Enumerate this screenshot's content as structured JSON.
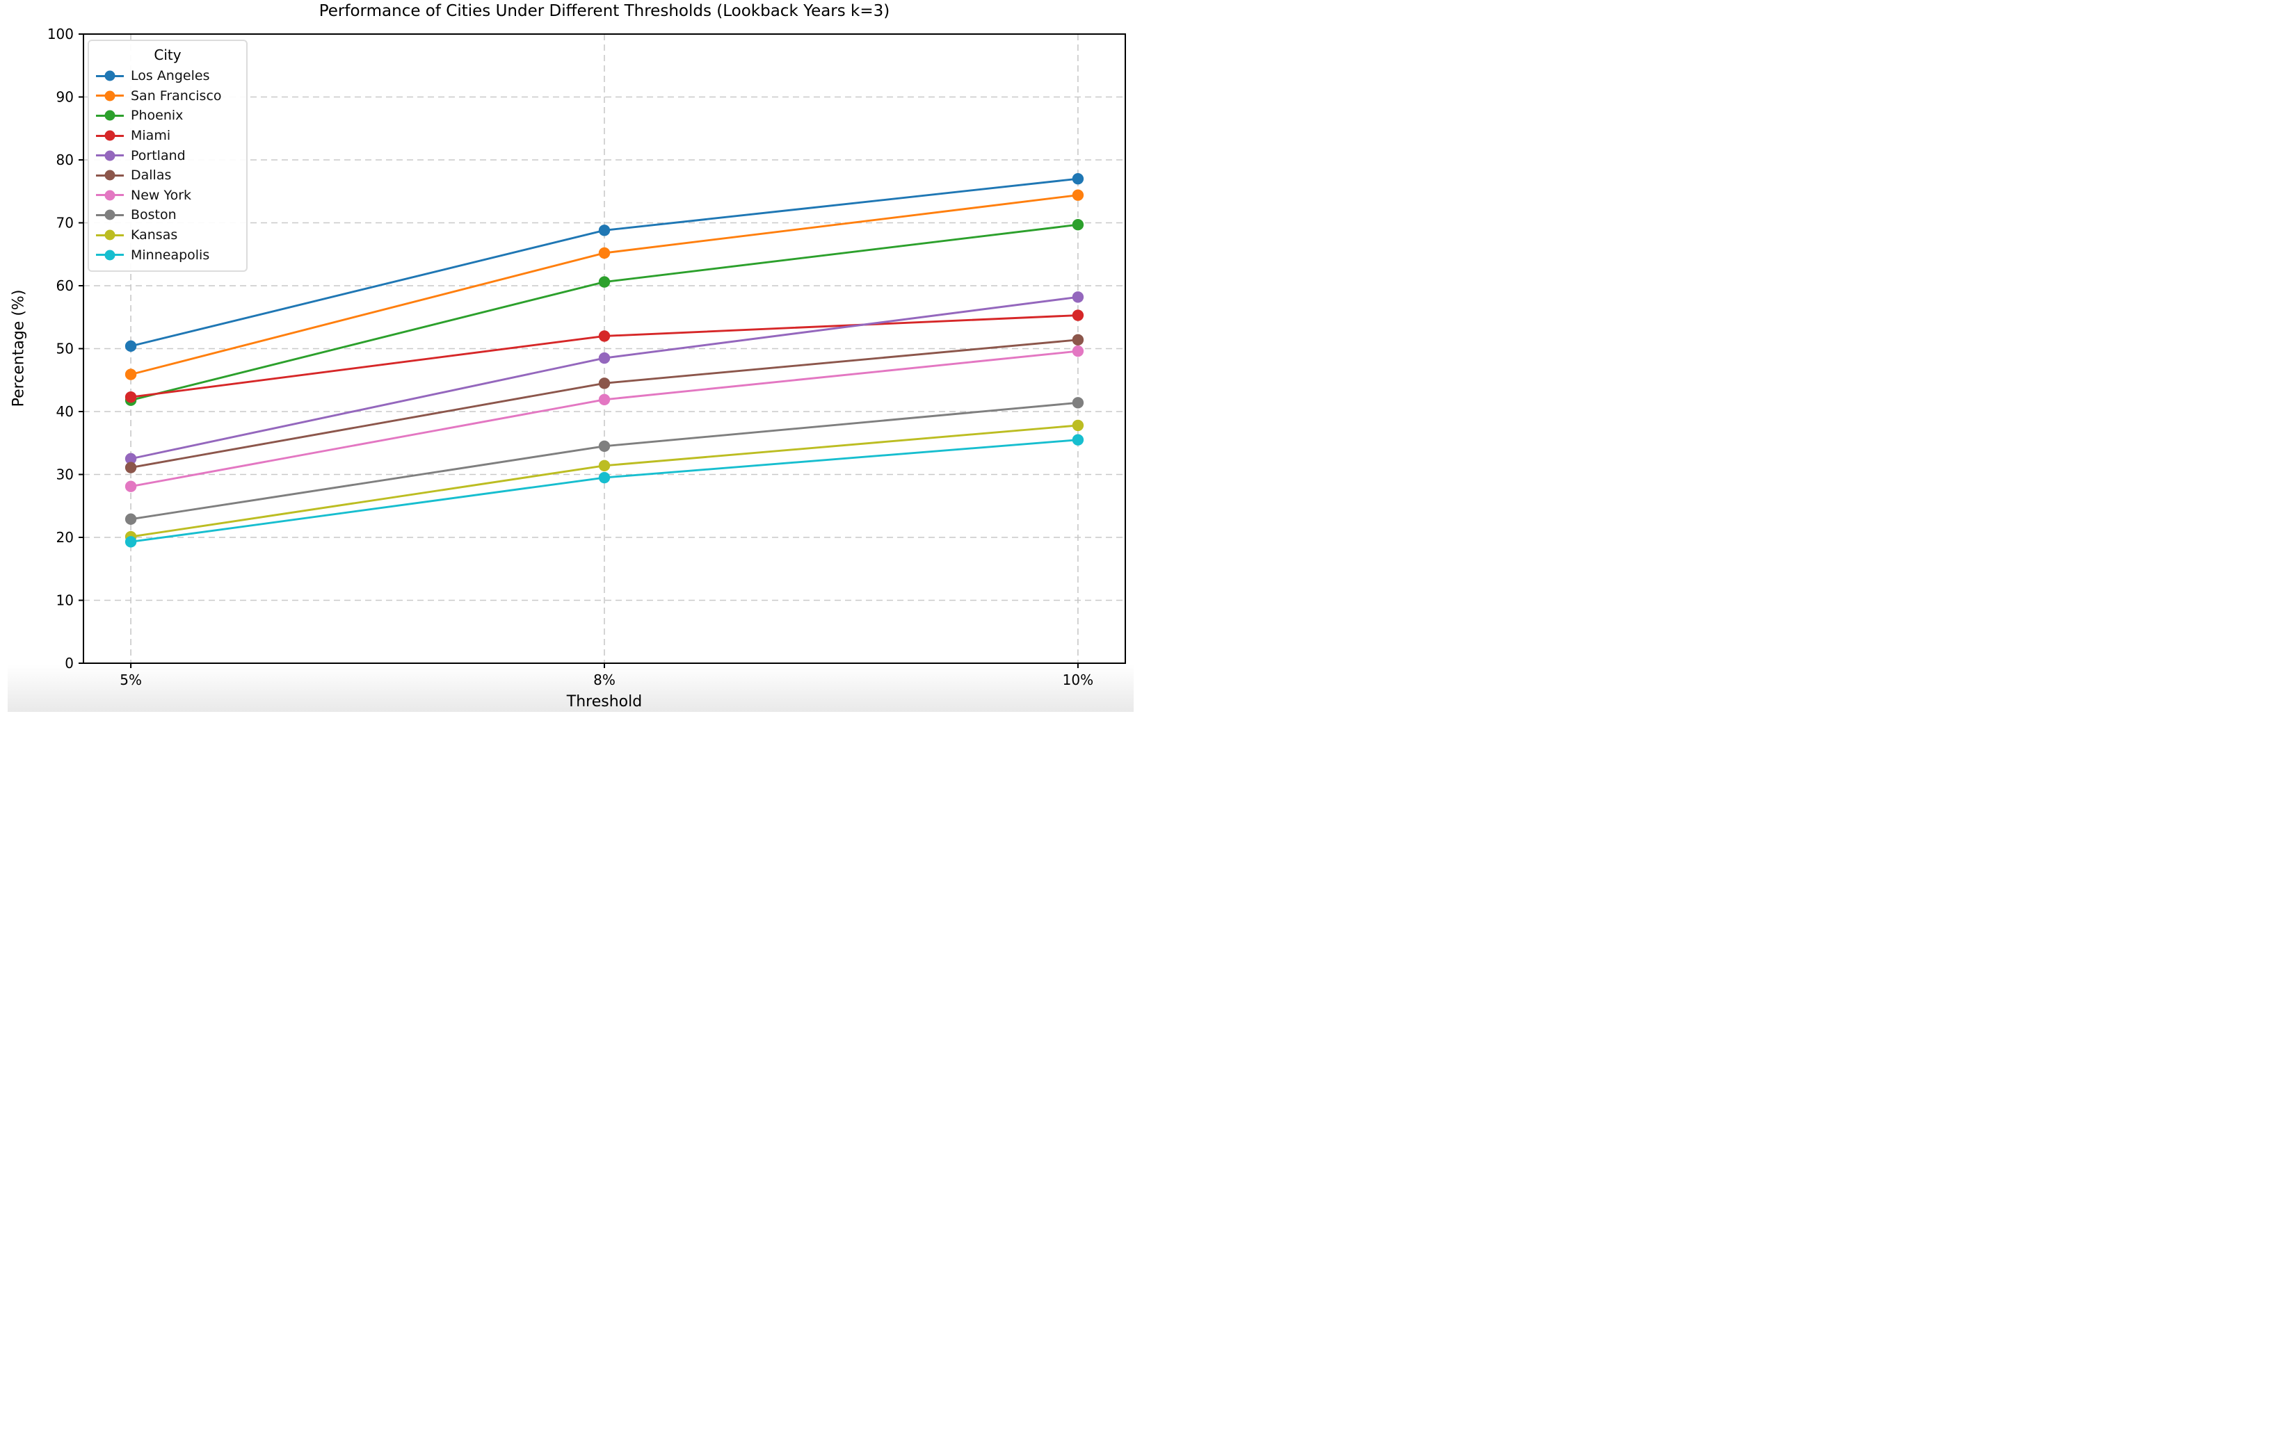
{
  "figure": {
    "background": "#ffffff",
    "footer_shade_color": "#e9e9e9"
  },
  "chart_data": {
    "type": "line",
    "title": "Performance of Cities Under Different Thresholds (Lookback Years k=3)",
    "xlabel": "Threshold",
    "ylabel": "Percentage (%)",
    "x_categories": [
      "5%",
      "8%",
      "10%"
    ],
    "y_ticks": [
      0,
      10,
      20,
      30,
      40,
      50,
      60,
      70,
      80,
      90,
      100
    ],
    "ylim": [
      0,
      100
    ],
    "grid": {
      "style": "dashed",
      "color": "#c9c9c9",
      "horizontal": true,
      "vertical": true
    },
    "axes": {
      "spine_color": "#000000",
      "tick_color": "#000000",
      "tick_label_color": "#000000"
    },
    "legend": {
      "title": "City",
      "position": "upper-left",
      "border_color": "#dcdcdc"
    },
    "series": [
      {
        "name": "Los Angeles",
        "color": "#1f77b4",
        "values": [
          50.4,
          68.8,
          77.0
        ]
      },
      {
        "name": "San Francisco",
        "color": "#ff7f0e",
        "values": [
          45.9,
          65.2,
          74.4
        ]
      },
      {
        "name": "Phoenix",
        "color": "#2ca02c",
        "values": [
          41.8,
          60.6,
          69.7
        ]
      },
      {
        "name": "Miami",
        "color": "#d62728",
        "values": [
          42.3,
          52.0,
          55.3
        ]
      },
      {
        "name": "Portland",
        "color": "#9467bd",
        "values": [
          32.5,
          48.5,
          58.2
        ]
      },
      {
        "name": "Dallas",
        "color": "#8c564b",
        "values": [
          31.1,
          44.5,
          51.4
        ]
      },
      {
        "name": "New York",
        "color": "#e377c2",
        "values": [
          28.1,
          41.9,
          49.6
        ]
      },
      {
        "name": "Boston",
        "color": "#7f7f7f",
        "values": [
          22.9,
          34.5,
          41.4
        ]
      },
      {
        "name": "Kansas",
        "color": "#bcbd22",
        "values": [
          20.1,
          31.4,
          37.8
        ]
      },
      {
        "name": "Minneapolis",
        "color": "#17becf",
        "values": [
          19.3,
          29.5,
          35.5
        ]
      }
    ]
  }
}
